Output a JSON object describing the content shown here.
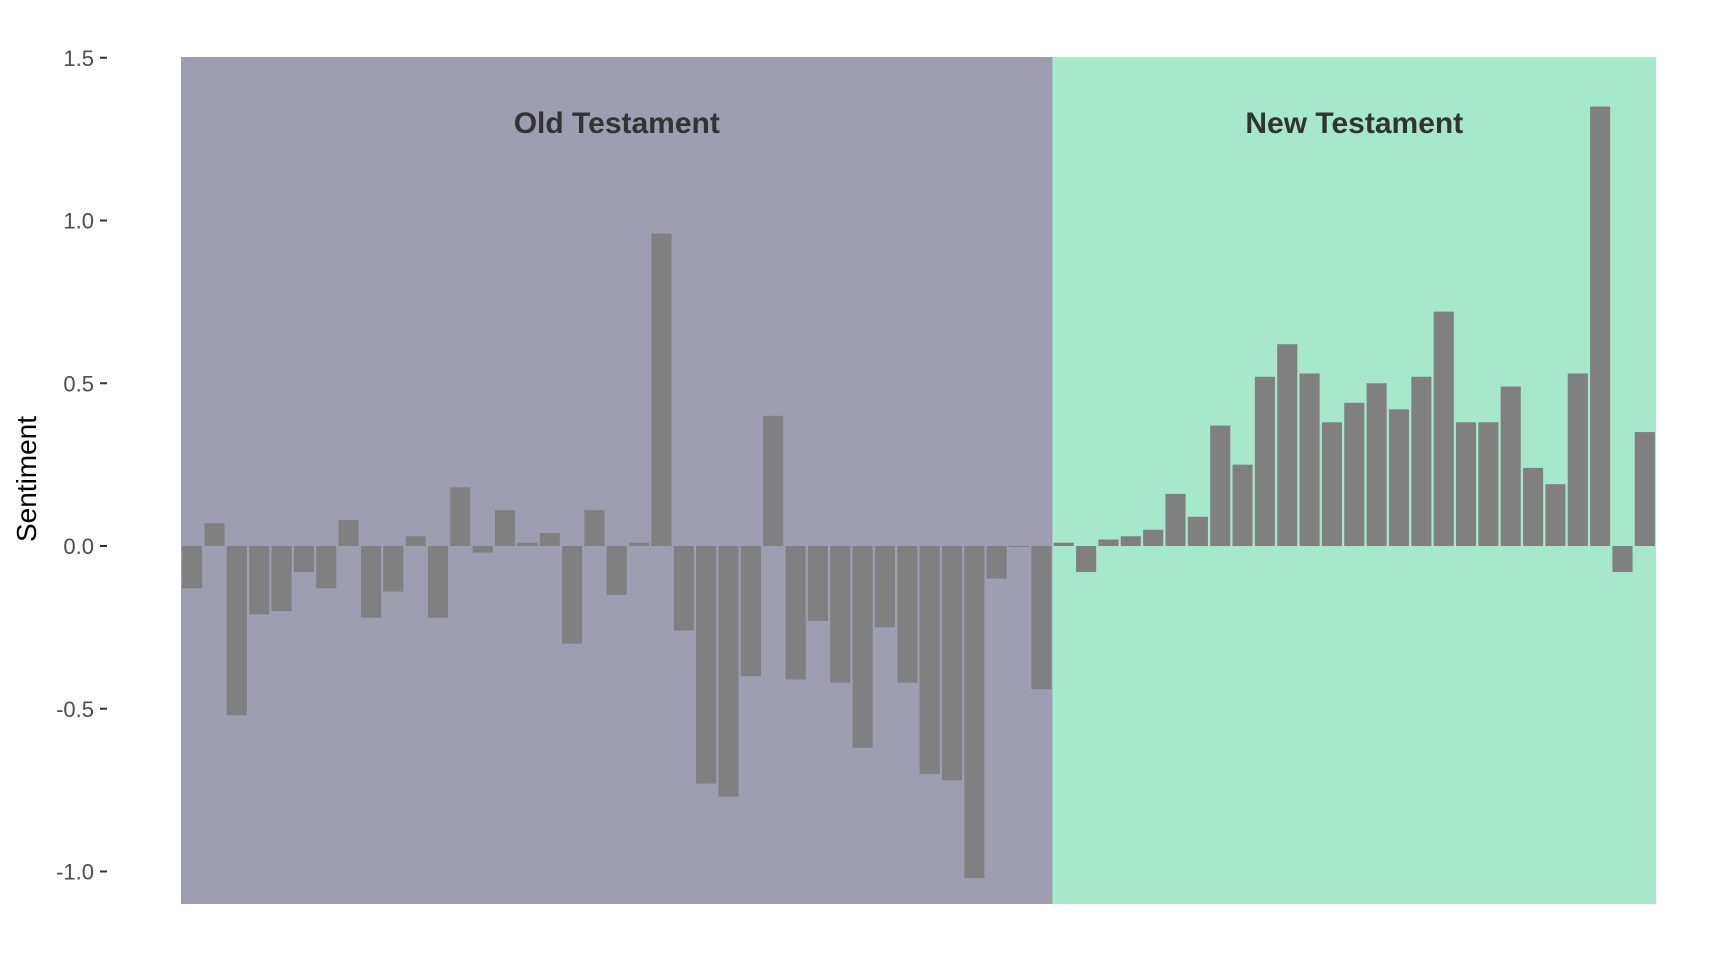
{
  "chart_data": {
    "type": "bar",
    "title": "",
    "xlabel": "",
    "ylabel": "Sentiment",
    "ylim": [
      -1.1,
      1.5
    ],
    "yticks": [
      1.5,
      1.0,
      0.5,
      0.0,
      -0.5,
      -1.0
    ],
    "ytick_labels": [
      "1.5",
      "1.0",
      "0.5",
      "0.0",
      "-0.5",
      "-1.0"
    ],
    "grid": false,
    "legend": "none",
    "bar_color": "#808080",
    "regions": [
      {
        "label": "Old Testament",
        "color": "#9f9eb0",
        "books": 39
      },
      {
        "label": "New Testament",
        "color": "#a6e8cb",
        "books": 27
      }
    ],
    "values": [
      -0.13,
      0.07,
      -0.52,
      -0.21,
      -0.2,
      -0.08,
      -0.13,
      0.08,
      -0.22,
      -0.14,
      0.03,
      -0.22,
      0.18,
      -0.02,
      0.11,
      0.01,
      0.04,
      -0.3,
      0.11,
      -0.15,
      0.01,
      0.96,
      -0.26,
      -0.73,
      -0.77,
      -0.4,
      0.4,
      -0.41,
      -0.23,
      -0.42,
      -0.62,
      -0.25,
      -0.42,
      -0.7,
      -0.72,
      -1.02,
      -0.1,
      0.0,
      -0.44,
      0.01,
      -0.08,
      0.02,
      0.03,
      0.05,
      0.16,
      0.09,
      0.37,
      0.25,
      0.52,
      0.62,
      0.53,
      0.38,
      0.44,
      0.5,
      0.42,
      0.52,
      0.72,
      0.38,
      0.38,
      0.49,
      0.24,
      0.19,
      0.53,
      1.35,
      -0.08,
      0.35
    ]
  }
}
